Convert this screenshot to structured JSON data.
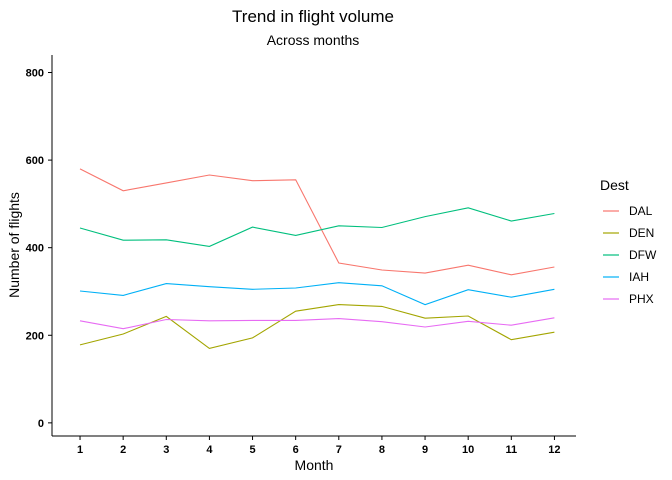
{
  "chart_data": {
    "type": "line",
    "title": "Trend in flight volume",
    "subtitle": "Across months",
    "xlabel": "Month",
    "ylabel": "Number of flights",
    "x": [
      1,
      2,
      3,
      4,
      5,
      6,
      7,
      8,
      9,
      10,
      11,
      12
    ],
    "xlim": [
      0.35,
      12.5
    ],
    "ylim": [
      -30,
      840
    ],
    "y_ticks": [
      0,
      200,
      400,
      600,
      800
    ],
    "grid": false,
    "legend": {
      "title": "Dest",
      "position": "right"
    },
    "series": [
      {
        "name": "DAL",
        "color": "#F8766D",
        "values": [
          580,
          530,
          548,
          566,
          553,
          555,
          365,
          349,
          342,
          360,
          338,
          356
        ]
      },
      {
        "name": "DEN",
        "color": "#A3A500",
        "values": [
          178,
          203,
          243,
          170,
          194,
          255,
          270,
          266,
          239,
          244,
          190,
          207
        ]
      },
      {
        "name": "DFW",
        "color": "#00BF7D",
        "values": [
          445,
          417,
          418,
          403,
          447,
          428,
          450,
          446,
          471,
          491,
          461,
          478
        ]
      },
      {
        "name": "IAH",
        "color": "#00B0F6",
        "values": [
          301,
          291,
          318,
          311,
          305,
          308,
          320,
          313,
          270,
          304,
          287,
          305
        ]
      },
      {
        "name": "PHX",
        "color": "#E76BF3",
        "values": [
          233,
          215,
          236,
          233,
          234,
          234,
          238,
          231,
          219,
          232,
          223,
          240
        ]
      }
    ]
  }
}
